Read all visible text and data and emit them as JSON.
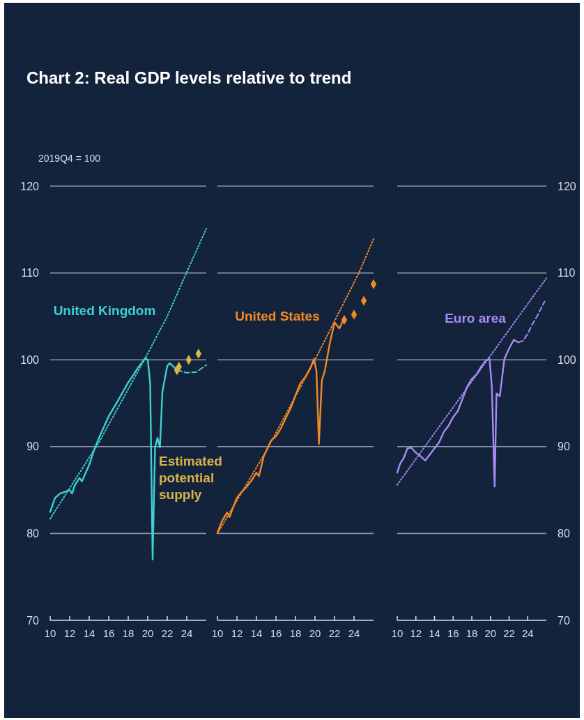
{
  "chart_data": [
    {
      "type": "line",
      "title": "Chart 2: Real GDP levels relative to trend",
      "ylabel": "2019Q4 = 100",
      "xlim": [
        10,
        26
      ],
      "xticks": [
        10,
        12,
        14,
        16,
        18,
        20,
        22,
        24
      ],
      "ylim": [
        70,
        120
      ],
      "yticks": [
        70,
        80,
        90,
        100,
        110,
        120
      ],
      "grid": "y",
      "tick_labels": true,
      "series": [
        {
          "name": "United Kingdom",
          "type": "line",
          "color": "#3fd0d0",
          "line_style": "solid",
          "x": [
            10,
            10.5,
            11,
            11.5,
            12,
            12.25,
            12.5,
            13,
            13.25,
            14,
            14.5,
            15,
            16,
            17,
            18,
            18.5,
            19,
            19.5,
            19.75,
            20,
            20.25,
            20.5,
            20.75,
            21,
            21.25,
            21.5,
            22,
            22.25,
            22.75,
            23
          ],
          "values": [
            82.5,
            84.1,
            84.6,
            84.8,
            85.0,
            84.6,
            85.5,
            86.4,
            86.0,
            87.9,
            89.6,
            91.0,
            93.5,
            95.4,
            97.4,
            98.2,
            99.1,
            99.8,
            100.2,
            100,
            97.3,
            77.0,
            89.9,
            91.0,
            89.9,
            96.3,
            99.3,
            99.6,
            99.1,
            98.8
          ]
        },
        {
          "type": "line",
          "color": "#3fd0d0",
          "line_style": "dashed",
          "x": [
            23,
            24,
            25,
            26
          ],
          "values": [
            98.8,
            98.5,
            98.6,
            99.4
          ]
        },
        {
          "type": "line",
          "color": "#3fd0d0",
          "line_style": "dotted",
          "x": [
            10,
            15,
            19.8,
            22,
            24,
            26
          ],
          "values": [
            81.7,
            90.5,
            100.3,
            105,
            110.1,
            115.1
          ]
        },
        {
          "name": "Estimated potential supply",
          "type": "scatter",
          "marker": "diamond",
          "color": "#d9b44a",
          "x": [
            23,
            23.2,
            24.2,
            25.2
          ],
          "values": [
            98.8,
            99.2,
            100.0,
            100.7
          ]
        }
      ]
    },
    {
      "type": "line",
      "xlim": [
        10,
        26
      ],
      "xticks": [
        10,
        12,
        14,
        16,
        18,
        20,
        22,
        24
      ],
      "ylim": [
        70,
        120
      ],
      "yticks": [
        70,
        80,
        90,
        100,
        110,
        120
      ],
      "grid": "y",
      "tick_labels": "x",
      "series": [
        {
          "name": "United States",
          "type": "line",
          "color": "#f28a26",
          "line_style": "solid",
          "x": [
            10,
            10.5,
            11,
            11.25,
            11.5,
            12,
            12.5,
            13,
            13.5,
            14,
            14.25,
            14.75,
            15.5,
            16,
            16.5,
            17,
            17.5,
            18,
            18.5,
            19,
            19.5,
            19.9,
            20.15,
            20.4,
            20.7,
            21,
            21.5,
            22,
            22.5,
            22.9
          ],
          "values": [
            80.1,
            81.5,
            82.4,
            81.9,
            82.7,
            84.1,
            84.8,
            85.4,
            86.1,
            87.0,
            86.6,
            88.9,
            90.7,
            91.2,
            92.1,
            93.3,
            94.4,
            95.9,
            97.3,
            98.0,
            99.0,
            100.1,
            98.7,
            90.3,
            97.6,
            98.7,
            101.8,
            104.3,
            103.6,
            104.6
          ]
        },
        {
          "type": "line",
          "color": "#f28a26",
          "line_style": "dotted",
          "x": [
            10,
            15,
            20,
            24.5,
            26
          ],
          "values": [
            80.0,
            89.5,
            100,
            110,
            113.9
          ]
        },
        {
          "type": "scatter",
          "marker": "diamond",
          "color": "#f28a26",
          "x": [
            23,
            24,
            25,
            26
          ],
          "values": [
            104.6,
            105.2,
            106.8,
            108.7
          ]
        }
      ]
    },
    {
      "type": "line",
      "xlim": [
        10,
        26
      ],
      "xticks": [
        10,
        12,
        14,
        16,
        18,
        20,
        22,
        24
      ],
      "ylim": [
        70,
        120
      ],
      "yticks": [
        70,
        80,
        90,
        100,
        110,
        120
      ],
      "grid": "y",
      "tick_labels": true,
      "series": [
        {
          "name": "Euro area",
          "type": "line",
          "color": "#a98bf5",
          "line_style": "solid",
          "x": [
            10,
            10.3,
            10.7,
            11.1,
            11.5,
            12,
            12.5,
            13,
            13.5,
            14,
            14.5,
            15,
            15.5,
            16,
            16.5,
            17,
            17.5,
            18,
            18.5,
            19,
            19.5,
            19.9,
            20.15,
            20.45,
            20.65,
            21,
            21.5,
            22,
            22.5,
            23
          ],
          "values": [
            87.0,
            88.0,
            88.7,
            89.8,
            89.9,
            89.3,
            88.9,
            88.4,
            89.1,
            89.8,
            90.5,
            91.7,
            92.4,
            93.4,
            94.1,
            95.5,
            96.9,
            97.8,
            98.3,
            99.2,
            99.9,
            100.1,
            96.9,
            85.4,
            96.1,
            95.8,
            100.1,
            101.3,
            102.3,
            102.0
          ]
        },
        {
          "type": "line",
          "color": "#a98bf5",
          "line_style": "dashed",
          "x": [
            23,
            23.5,
            24,
            24.5,
            25,
            25.8
          ],
          "values": [
            102.0,
            102.2,
            103.0,
            104.1,
            105.0,
            106.7
          ]
        },
        {
          "type": "line",
          "color": "#a98bf5",
          "line_style": "dotted",
          "x": [
            10,
            26
          ],
          "values": [
            85.6,
            109.4
          ]
        }
      ]
    }
  ]
}
